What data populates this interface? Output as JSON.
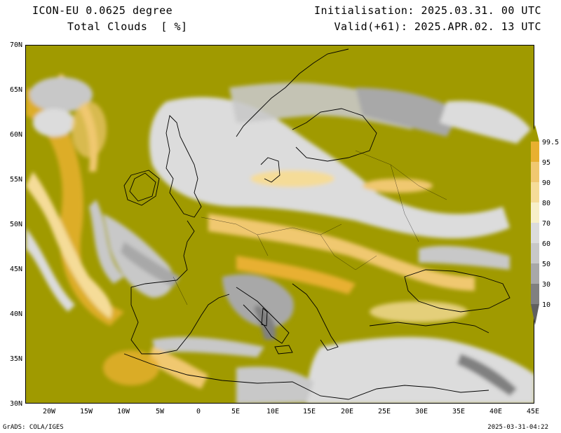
{
  "header": {
    "model": "ICON-EU 0.0625 degree",
    "field": "Total Clouds  [ %]",
    "init": "Initialisation: 2025.03.31. 00 UTC",
    "valid": "Valid(+61): 2025.APR.02. 13 UTC"
  },
  "axes": {
    "lat_labels": [
      "70N",
      "65N",
      "60N",
      "55N",
      "50N",
      "45N",
      "40N",
      "35N",
      "30N"
    ],
    "lon_labels": [
      "20W",
      "15W",
      "10W",
      "5W",
      "0",
      "5E",
      "10E",
      "15E",
      "20E",
      "25E",
      "30E",
      "35E",
      "40E",
      "45E"
    ]
  },
  "colorbar": {
    "labels": [
      "99.5",
      "95",
      "90",
      "80",
      "70",
      "60",
      "50",
      "30",
      "10"
    ],
    "colors": {
      "over": "#a09a00",
      "c95": "#e8b030",
      "c90": "#f0c870",
      "c80": "#f5dc98",
      "c70": "#f7efc8",
      "c60": "#dcdcdc",
      "c50": "#c8c8c8",
      "c30": "#a8a8a8",
      "c10": "#808080",
      "under": "#606060"
    }
  },
  "footer": {
    "left": "GrADS: COLA/IGES",
    "right": "2025-03-31-04:22"
  }
}
